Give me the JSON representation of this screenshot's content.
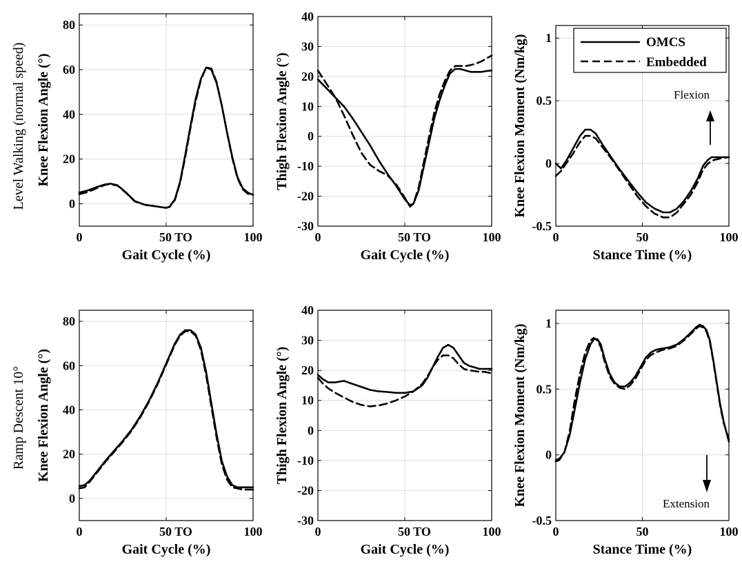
{
  "row_labels": [
    "Level Walking (normal speed)",
    "Ramp Descent 10°"
  ],
  "legend": {
    "omcs": "OMCS",
    "embedded": "Embedded"
  },
  "annotations": {
    "flexion": "Flexion",
    "extension": "Extension"
  },
  "chart_data": [
    {
      "type": "line",
      "row": 0,
      "col": 0,
      "xlabel": "Gait Cycle (%)",
      "ylabel": "Knee Flexion Angle (°)",
      "xlim": [
        0,
        100
      ],
      "ylim": [
        -10,
        85
      ],
      "xticks": [
        "0",
        "50 TO",
        "100"
      ],
      "yticks": [
        0,
        20,
        40,
        60,
        80
      ],
      "grid": true,
      "grid_x": [
        50
      ],
      "grid_y": [
        0,
        20,
        40,
        60,
        80
      ],
      "series": [
        {
          "name": "OMCS",
          "style": "solid",
          "x": [
            0,
            5,
            10,
            15,
            18,
            22,
            27,
            32,
            38,
            43,
            47,
            50,
            52,
            55,
            58,
            61,
            64,
            67,
            70,
            73,
            76,
            79,
            82,
            85,
            88,
            91,
            94,
            97,
            100
          ],
          "y": [
            5,
            6,
            7.5,
            8.7,
            9,
            8.3,
            5,
            1.2,
            -0.5,
            -1,
            -1.5,
            -1.8,
            -1.3,
            2,
            10,
            22,
            35,
            47,
            56,
            61,
            60,
            54,
            44,
            32,
            21,
            12,
            7,
            5,
            4
          ]
        },
        {
          "name": "Embedded",
          "style": "dashed",
          "x": [
            0,
            5,
            10,
            15,
            18,
            22,
            27,
            32,
            38,
            43,
            47,
            50,
            52,
            55,
            58,
            61,
            64,
            67,
            70,
            73,
            76,
            79,
            82,
            85,
            88,
            91,
            94,
            97,
            100
          ],
          "y": [
            4.3,
            5.3,
            7,
            8.5,
            8.8,
            8.1,
            4.8,
            1,
            -0.5,
            -1,
            -1.5,
            -1.8,
            -1.4,
            1.7,
            9.5,
            21,
            34,
            46,
            55.5,
            61,
            60.5,
            54.5,
            44,
            32,
            20.5,
            11.5,
            6.5,
            4.5,
            4
          ]
        }
      ]
    },
    {
      "type": "line",
      "row": 0,
      "col": 1,
      "xlabel": "Gait Cycle (%)",
      "ylabel": "Thigh Flexion Angle (°)",
      "xlim": [
        0,
        100
      ],
      "ylim": [
        -30,
        40
      ],
      "xticks": [
        "0",
        "50 TO",
        "100"
      ],
      "yticks": [
        -30,
        -20,
        -10,
        0,
        10,
        20,
        30,
        40
      ],
      "grid": true,
      "grid_x": [
        50
      ],
      "grid_y": [
        -20,
        -10,
        0,
        10,
        20,
        30
      ],
      "series": [
        {
          "name": "OMCS",
          "style": "solid",
          "x": [
            0,
            5,
            10,
            15,
            20,
            25,
            30,
            35,
            40,
            45,
            50,
            53,
            55,
            58,
            61,
            64,
            67,
            70,
            73,
            76,
            79,
            82,
            85,
            88,
            91,
            94,
            97,
            100
          ],
          "y": [
            19,
            16,
            13,
            10,
            6,
            1.5,
            -3,
            -8,
            -12.5,
            -16.5,
            -21,
            -23,
            -22.5,
            -18,
            -10,
            -2,
            6,
            12,
            17,
            21,
            22.5,
            22.5,
            22,
            21.5,
            21.5,
            21.5,
            21.8,
            22
          ]
        },
        {
          "name": "Embedded",
          "style": "dashed",
          "x": [
            0,
            5,
            10,
            15,
            20,
            25,
            30,
            35,
            40,
            45,
            50,
            53,
            55,
            58,
            61,
            64,
            67,
            70,
            73,
            76,
            79,
            82,
            85,
            88,
            91,
            94,
            97,
            100
          ],
          "y": [
            22,
            17.5,
            13,
            7,
            0.5,
            -5.5,
            -9.5,
            -11.5,
            -13,
            -16,
            -20.5,
            -23.5,
            -22.5,
            -17,
            -8.5,
            0,
            8,
            14,
            18.5,
            22,
            23.5,
            23.5,
            23.5,
            23.8,
            24.3,
            25,
            26,
            27
          ]
        }
      ]
    },
    {
      "type": "line",
      "row": 0,
      "col": 2,
      "xlabel": "Stance Time (%)",
      "ylabel": "Knee Flexion Moment (Nm/kg)",
      "xlim": [
        0,
        100
      ],
      "ylim": [
        -0.5,
        1.1
      ],
      "xticks": [
        "0",
        "50",
        "100"
      ],
      "yticks": [
        -0.5,
        0,
        0.5,
        1
      ],
      "grid": true,
      "grid_x": [
        50
      ],
      "grid_y": [
        0,
        0.5,
        1
      ],
      "series": [
        {
          "name": "OMCS",
          "style": "solid",
          "x": [
            0,
            3,
            6,
            10,
            14,
            17,
            20,
            23,
            27,
            32,
            37,
            42,
            47,
            52,
            57,
            62,
            66,
            70,
            74,
            78,
            82,
            85,
            88,
            90,
            92,
            95,
            100
          ],
          "y": [
            0,
            -0.04,
            0.02,
            0.12,
            0.22,
            0.27,
            0.27,
            0.24,
            0.15,
            0.05,
            -0.05,
            -0.14,
            -0.23,
            -0.31,
            -0.36,
            -0.39,
            -0.39,
            -0.36,
            -0.3,
            -0.22,
            -0.12,
            -0.02,
            0.03,
            0.05,
            0.05,
            0.05,
            0.05
          ]
        },
        {
          "name": "Embedded",
          "style": "dashed",
          "x": [
            0,
            3,
            6,
            10,
            14,
            17,
            20,
            23,
            27,
            32,
            37,
            42,
            47,
            52,
            57,
            62,
            66,
            70,
            74,
            78,
            82,
            85,
            88,
            90,
            92,
            95,
            100
          ],
          "y": [
            -0.1,
            -0.06,
            0,
            0.08,
            0.17,
            0.22,
            0.22,
            0.2,
            0.13,
            0.04,
            -0.06,
            -0.16,
            -0.26,
            -0.34,
            -0.4,
            -0.43,
            -0.43,
            -0.39,
            -0.32,
            -0.25,
            -0.15,
            -0.05,
            0,
            0.02,
            0.03,
            0.04,
            0.05
          ]
        }
      ]
    },
    {
      "type": "line",
      "row": 1,
      "col": 0,
      "xlabel": "Gait Cycle (%)",
      "ylabel": "Knee Flexion Angle (°)",
      "xlim": [
        0,
        100
      ],
      "ylim": [
        -10,
        85
      ],
      "xticks": [
        "0",
        "50 TO",
        "100"
      ],
      "yticks": [
        0,
        20,
        40,
        60,
        80
      ],
      "grid": true,
      "grid_x": [
        50
      ],
      "grid_y": [
        0,
        20,
        40,
        60,
        80
      ],
      "series": [
        {
          "name": "OMCS",
          "style": "solid",
          "x": [
            0,
            3,
            6,
            10,
            15,
            20,
            25,
            30,
            35,
            40,
            45,
            50,
            55,
            58,
            61,
            64,
            67,
            70,
            73,
            76,
            79,
            82,
            85,
            88,
            91,
            94,
            97,
            100
          ],
          "y": [
            5.5,
            6,
            8,
            12,
            17,
            21.5,
            26,
            31,
            37,
            44,
            52,
            61,
            70,
            74,
            76,
            76,
            74,
            68,
            57,
            43,
            29,
            17,
            10,
            6,
            5,
            5,
            5,
            5
          ]
        },
        {
          "name": "Embedded",
          "style": "dashed",
          "x": [
            0,
            3,
            6,
            10,
            15,
            20,
            25,
            30,
            35,
            40,
            45,
            50,
            55,
            58,
            61,
            64,
            67,
            70,
            73,
            76,
            79,
            82,
            85,
            88,
            91,
            94,
            97,
            100
          ],
          "y": [
            4.5,
            5,
            7.5,
            11.5,
            16.5,
            21,
            25.5,
            30.5,
            36.5,
            43.5,
            51.5,
            60.5,
            69.5,
            73.5,
            75.5,
            75.5,
            73.5,
            67,
            55.5,
            41.5,
            27.5,
            15.5,
            8.5,
            5,
            4.5,
            4,
            4,
            4
          ]
        }
      ]
    },
    {
      "type": "line",
      "row": 1,
      "col": 1,
      "xlabel": "Gait Cycle (%)",
      "ylabel": "Thigh Flexion Angle (°)",
      "xlim": [
        0,
        100
      ],
      "ylim": [
        -30,
        40
      ],
      "xticks": [
        "0",
        "50 TO",
        "100"
      ],
      "yticks": [
        -30,
        -20,
        -10,
        0,
        10,
        20,
        30,
        40
      ],
      "grid": true,
      "grid_x": [
        50
      ],
      "grid_y": [
        -20,
        -10,
        0,
        10,
        20,
        30
      ],
      "series": [
        {
          "name": "OMCS",
          "style": "solid",
          "x": [
            0,
            3,
            6,
            10,
            15,
            20,
            25,
            30,
            35,
            40,
            45,
            50,
            55,
            60,
            63,
            66,
            69,
            72,
            75,
            78,
            81,
            84,
            87,
            90,
            93,
            96,
            100
          ],
          "y": [
            18.5,
            17,
            16,
            16,
            16.5,
            15.5,
            14.5,
            13.5,
            13,
            12.8,
            12.5,
            12.5,
            13,
            15,
            17.5,
            21,
            24.5,
            27.5,
            28.5,
            27.5,
            25,
            22.5,
            21.5,
            21,
            20.5,
            20.5,
            20.5
          ]
        },
        {
          "name": "Embedded",
          "style": "dashed",
          "x": [
            0,
            3,
            6,
            10,
            15,
            20,
            25,
            30,
            35,
            40,
            45,
            50,
            55,
            60,
            63,
            66,
            69,
            72,
            75,
            78,
            81,
            84,
            87,
            90,
            93,
            96,
            100
          ],
          "y": [
            17.5,
            15.5,
            14,
            12.5,
            11,
            9.5,
            8.5,
            8,
            8.3,
            9,
            10,
            11.3,
            13,
            15.5,
            18,
            21,
            23.5,
            25,
            25,
            24,
            22,
            20.5,
            20,
            19.8,
            19.5,
            19.5,
            19
          ]
        }
      ]
    },
    {
      "type": "line",
      "row": 1,
      "col": 2,
      "xlabel": "Stance Time (%)",
      "ylabel": "Knee Flexion Moment (Nm/kg)",
      "xlim": [
        0,
        100
      ],
      "ylim": [
        -0.5,
        1.1
      ],
      "xticks": [
        "0",
        "50",
        "100"
      ],
      "yticks": [
        -0.5,
        0,
        0.5,
        1
      ],
      "grid": true,
      "grid_x": [
        50
      ],
      "grid_y": [
        0,
        0.5,
        1
      ],
      "series": [
        {
          "name": "OMCS",
          "style": "solid",
          "x": [
            0,
            2,
            5,
            8,
            11,
            14,
            17,
            20,
            22,
            24,
            26,
            28,
            31,
            34,
            37,
            40,
            43,
            46,
            49,
            52,
            55,
            58,
            62,
            66,
            70,
            74,
            78,
            81,
            83,
            85,
            87,
            89,
            91,
            93,
            95,
            97,
            100
          ],
          "y": [
            -0.04,
            -0.03,
            0.02,
            0.15,
            0.35,
            0.55,
            0.73,
            0.84,
            0.88,
            0.88,
            0.84,
            0.74,
            0.62,
            0.55,
            0.52,
            0.52,
            0.55,
            0.6,
            0.67,
            0.74,
            0.78,
            0.8,
            0.81,
            0.82,
            0.84,
            0.88,
            0.93,
            0.97,
            0.99,
            0.98,
            0.95,
            0.87,
            0.72,
            0.55,
            0.38,
            0.25,
            0.1
          ]
        },
        {
          "name": "Embedded",
          "style": "dashed",
          "x": [
            0,
            2,
            5,
            8,
            11,
            14,
            17,
            20,
            22,
            24,
            26,
            28,
            31,
            34,
            37,
            40,
            43,
            46,
            49,
            52,
            55,
            58,
            62,
            66,
            70,
            74,
            78,
            81,
            83,
            85,
            87,
            89,
            91,
            93,
            95,
            97,
            100
          ],
          "y": [
            -0.05,
            -0.04,
            0.02,
            0.18,
            0.42,
            0.62,
            0.78,
            0.87,
            0.89,
            0.87,
            0.82,
            0.72,
            0.6,
            0.54,
            0.51,
            0.5,
            0.53,
            0.58,
            0.65,
            0.72,
            0.76,
            0.78,
            0.8,
            0.81,
            0.83,
            0.87,
            0.92,
            0.96,
            0.98,
            0.97,
            0.94,
            0.86,
            0.71,
            0.54,
            0.37,
            0.24,
            0.12
          ]
        }
      ]
    }
  ]
}
